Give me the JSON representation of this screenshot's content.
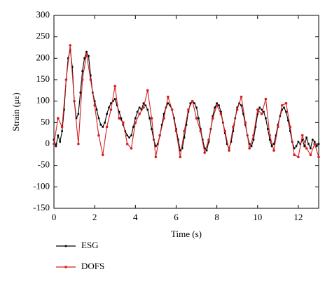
{
  "chart_data": {
    "type": "line",
    "xlabel": "Time (s)",
    "ylabel": "Strain (με)",
    "xlim": [
      0,
      13
    ],
    "xticks": [
      0,
      2,
      4,
      6,
      8,
      10,
      12
    ],
    "ylim": [
      -150,
      300
    ],
    "yticks": [
      -150,
      -100,
      -50,
      0,
      50,
      100,
      150,
      200,
      250,
      300
    ],
    "legend": "below",
    "series": [
      {
        "name": "ESG",
        "color": "#000000",
        "marker": "square",
        "x": [
          0,
          0.1,
          0.2,
          0.3,
          0.4,
          0.5,
          0.6,
          0.7,
          0.8,
          0.9,
          1,
          1.1,
          1.2,
          1.3,
          1.4,
          1.5,
          1.6,
          1.7,
          1.8,
          1.9,
          2,
          2.1,
          2.2,
          2.3,
          2.4,
          2.5,
          2.6,
          2.7,
          2.8,
          2.9,
          3,
          3.1,
          3.2,
          3.3,
          3.4,
          3.5,
          3.6,
          3.7,
          3.8,
          3.9,
          4,
          4.1,
          4.2,
          4.3,
          4.4,
          4.5,
          4.6,
          4.7,
          4.8,
          4.9,
          5,
          5.1,
          5.2,
          5.3,
          5.4,
          5.5,
          5.6,
          5.7,
          5.8,
          5.9,
          6,
          6.1,
          6.2,
          6.3,
          6.4,
          6.5,
          6.6,
          6.7,
          6.8,
          6.9,
          7,
          7.1,
          7.2,
          7.3,
          7.4,
          7.5,
          7.6,
          7.7,
          7.8,
          7.9,
          8,
          8.1,
          8.2,
          8.3,
          8.4,
          8.5,
          8.6,
          8.7,
          8.8,
          8.9,
          9,
          9.1,
          9.2,
          9.3,
          9.4,
          9.5,
          9.6,
          9.7,
          9.8,
          9.9,
          10,
          10.1,
          10.2,
          10.3,
          10.4,
          10.5,
          10.6,
          10.7,
          10.8,
          10.9,
          11,
          11.1,
          11.2,
          11.3,
          11.4,
          11.5,
          11.6,
          11.7,
          11.8,
          11.9,
          12,
          12.1,
          12.2,
          12.3,
          12.4,
          12.5,
          12.6,
          12.7,
          12.8,
          12.9,
          13
        ],
        "values": [
          10,
          -5,
          20,
          5,
          30,
          80,
          150,
          200,
          220,
          180,
          100,
          60,
          70,
          120,
          170,
          200,
          215,
          205,
          160,
          120,
          100,
          80,
          60,
          45,
          40,
          50,
          70,
          85,
          95,
          100,
          105,
          90,
          75,
          60,
          45,
          30,
          20,
          15,
          20,
          40,
          60,
          75,
          85,
          80,
          95,
          90,
          80,
          60,
          35,
          10,
          -5,
          0,
          20,
          45,
          70,
          85,
          95,
          90,
          80,
          60,
          35,
          10,
          -15,
          -10,
          15,
          45,
          75,
          95,
          100,
          95,
          85,
          60,
          35,
          10,
          -10,
          -15,
          5,
          35,
          65,
          85,
          95,
          90,
          75,
          50,
          25,
          0,
          -10,
          5,
          30,
          60,
          85,
          95,
          90,
          70,
          45,
          20,
          0,
          -5,
          10,
          40,
          70,
          85,
          80,
          75,
          60,
          35,
          10,
          -5,
          0,
          20,
          45,
          65,
          80,
          85,
          75,
          55,
          30,
          5,
          -10,
          -5,
          5,
          0,
          10,
          -5,
          15,
          0,
          -10,
          10,
          5,
          -5,
          0
        ]
      },
      {
        "name": "DOFS",
        "color": "#d42020",
        "marker": "circle",
        "x": [
          0,
          0.2,
          0.4,
          0.6,
          0.8,
          1,
          1.2,
          1.4,
          1.6,
          1.8,
          2,
          2.2,
          2.4,
          2.6,
          2.8,
          3,
          3.2,
          3.4,
          3.6,
          3.8,
          4,
          4.2,
          4.4,
          4.6,
          4.8,
          5,
          5.2,
          5.4,
          5.6,
          5.8,
          6,
          6.2,
          6.4,
          6.6,
          6.8,
          7,
          7.2,
          7.4,
          7.6,
          7.8,
          8,
          8.2,
          8.4,
          8.6,
          8.8,
          9,
          9.2,
          9.4,
          9.6,
          9.8,
          10,
          10.2,
          10.4,
          10.6,
          10.8,
          11,
          11.2,
          11.4,
          11.6,
          11.8,
          12,
          12.2,
          12.4,
          12.6,
          12.8,
          13
        ],
        "values": [
          0,
          60,
          40,
          150,
          230,
          100,
          0,
          150,
          210,
          150,
          90,
          20,
          -25,
          40,
          80,
          135,
          60,
          50,
          0,
          -10,
          50,
          70,
          85,
          125,
          60,
          -30,
          20,
          60,
          110,
          80,
          30,
          -30,
          30,
          80,
          100,
          60,
          30,
          -20,
          10,
          60,
          90,
          70,
          30,
          -15,
          40,
          80,
          110,
          50,
          -10,
          20,
          80,
          70,
          105,
          20,
          -15,
          40,
          90,
          95,
          40,
          -25,
          -30,
          20,
          -10,
          -25,
          0,
          -30
        ]
      }
    ]
  }
}
